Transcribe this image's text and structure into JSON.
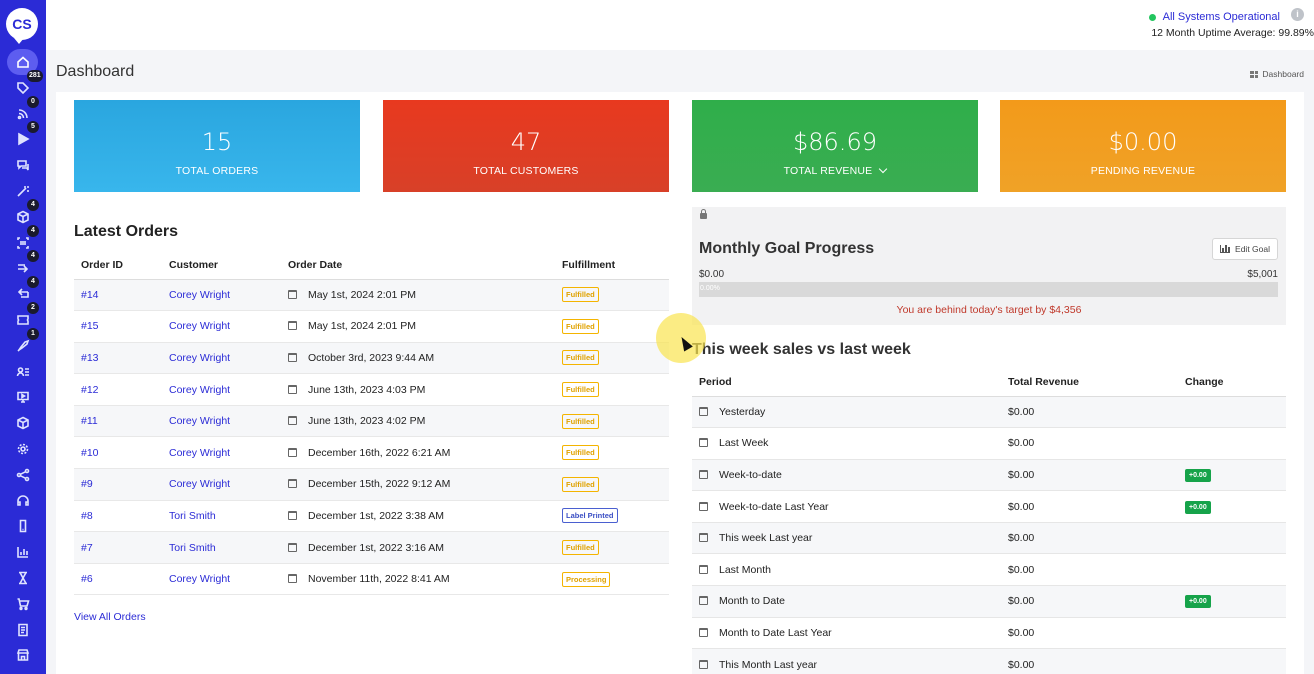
{
  "app": {
    "logo_text": "CS"
  },
  "sidebar": {
    "items": [
      {
        "icon": "home-icon",
        "badge": ""
      },
      {
        "icon": "tag-icon",
        "badge": "281"
      },
      {
        "icon": "rss-icon",
        "badge": "0"
      },
      {
        "icon": "play-icon",
        "badge": "5"
      },
      {
        "icon": "chat-icon",
        "badge": ""
      },
      {
        "icon": "magic-wand-icon",
        "badge": ""
      },
      {
        "icon": "box-icon",
        "badge": "4"
      },
      {
        "icon": "scan-icon",
        "badge": "4"
      },
      {
        "icon": "forward-icon",
        "badge": "4"
      },
      {
        "icon": "return-icon",
        "badge": "4"
      },
      {
        "icon": "ticket-icon",
        "badge": "2"
      },
      {
        "icon": "rocket-icon",
        "badge": "1"
      },
      {
        "icon": "users-list-icon",
        "badge": ""
      },
      {
        "icon": "monitor-icon",
        "badge": ""
      },
      {
        "icon": "cube-icon",
        "badge": ""
      },
      {
        "icon": "gear-icon",
        "badge": ""
      },
      {
        "icon": "share-icon",
        "badge": ""
      },
      {
        "icon": "headset-icon",
        "badge": ""
      },
      {
        "icon": "mobile-icon",
        "badge": ""
      },
      {
        "icon": "bar-chart-icon",
        "badge": ""
      },
      {
        "icon": "hourglass-icon",
        "badge": ""
      },
      {
        "icon": "cart-icon",
        "badge": ""
      },
      {
        "icon": "document-icon",
        "badge": ""
      },
      {
        "icon": "store-icon",
        "badge": ""
      }
    ]
  },
  "topbar": {
    "status": "All Systems Operational",
    "uptime": "12 Month Uptime Average: 99.89%"
  },
  "page": {
    "title": "Dashboard",
    "breadcrumb": "Dashboard"
  },
  "stats": {
    "orders": {
      "value": "15",
      "label": "TOTAL ORDERS"
    },
    "customers": {
      "value": "47",
      "label": "TOTAL CUSTOMERS"
    },
    "revenue": {
      "value": "$86.69",
      "label": "TOTAL REVENUE"
    },
    "pending": {
      "value": "$0.00",
      "label": "PENDING REVENUE"
    }
  },
  "orders": {
    "title": "Latest Orders",
    "headers": {
      "id": "Order ID",
      "customer": "Customer",
      "date": "Order Date",
      "fulfillment": "Fulfillment"
    },
    "rows": [
      {
        "id": "#14",
        "customer": "Corey Wright",
        "date": "May 1st, 2024 2:01 PM",
        "status": "Fulfilled"
      },
      {
        "id": "#15",
        "customer": "Corey Wright",
        "date": "May 1st, 2024 2:01 PM",
        "status": "Fulfilled"
      },
      {
        "id": "#13",
        "customer": "Corey Wright",
        "date": "October 3rd, 2023 9:44 AM",
        "status": "Fulfilled"
      },
      {
        "id": "#12",
        "customer": "Corey Wright",
        "date": "June 13th, 2023 4:03 PM",
        "status": "Fulfilled"
      },
      {
        "id": "#11",
        "customer": "Corey Wright",
        "date": "June 13th, 2023 4:02 PM",
        "status": "Fulfilled"
      },
      {
        "id": "#10",
        "customer": "Corey Wright",
        "date": "December 16th, 2022 6:21 AM",
        "status": "Fulfilled"
      },
      {
        "id": "#9",
        "customer": "Corey Wright",
        "date": "December 15th, 2022 9:12 AM",
        "status": "Fulfilled"
      },
      {
        "id": "#8",
        "customer": "Tori Smith",
        "date": "December 1st, 2022 3:38 AM",
        "status": "Label Printed"
      },
      {
        "id": "#7",
        "customer": "Tori Smith",
        "date": "December 1st, 2022 3:16 AM",
        "status": "Fulfilled"
      },
      {
        "id": "#6",
        "customer": "Corey Wright",
        "date": "November 11th, 2022 8:41 AM",
        "status": "Processing"
      }
    ],
    "view_all": "View All Orders"
  },
  "goal": {
    "title": "Monthly Goal Progress",
    "edit_label": "Edit Goal",
    "min": "$0.00",
    "max": "$5,001",
    "progress_label": "0.00%",
    "progress_fraction": 0,
    "behind_text": "You are behind today's target by $4,356"
  },
  "week": {
    "title": "This week sales vs last week",
    "headers": {
      "period": "Period",
      "revenue": "Total Revenue",
      "change": "Change"
    },
    "rows": [
      {
        "period": "Yesterday",
        "revenue": "$0.00",
        "change": ""
      },
      {
        "period": "Last Week",
        "revenue": "$0.00",
        "change": ""
      },
      {
        "period": "Week-to-date",
        "revenue": "$0.00",
        "change": "+0.00"
      },
      {
        "period": "Week-to-date Last Year",
        "revenue": "$0.00",
        "change": "+0.00"
      },
      {
        "period": "This week Last year",
        "revenue": "$0.00",
        "change": ""
      },
      {
        "period": "Last Month",
        "revenue": "$0.00",
        "change": ""
      },
      {
        "period": "Month to Date",
        "revenue": "$0.00",
        "change": "+0.00"
      },
      {
        "period": "Month to Date Last Year",
        "revenue": "$0.00",
        "change": ""
      },
      {
        "period": "This Month Last year",
        "revenue": "$0.00",
        "change": ""
      }
    ]
  },
  "colors": {
    "sidebar": "#2b2bd6",
    "card_blue": "#2aa6df",
    "card_red": "#e8391f",
    "card_green": "#2fae4a",
    "card_orange": "#f39a1a",
    "link": "#2b2bd6",
    "change_badge": "#16a34a"
  }
}
